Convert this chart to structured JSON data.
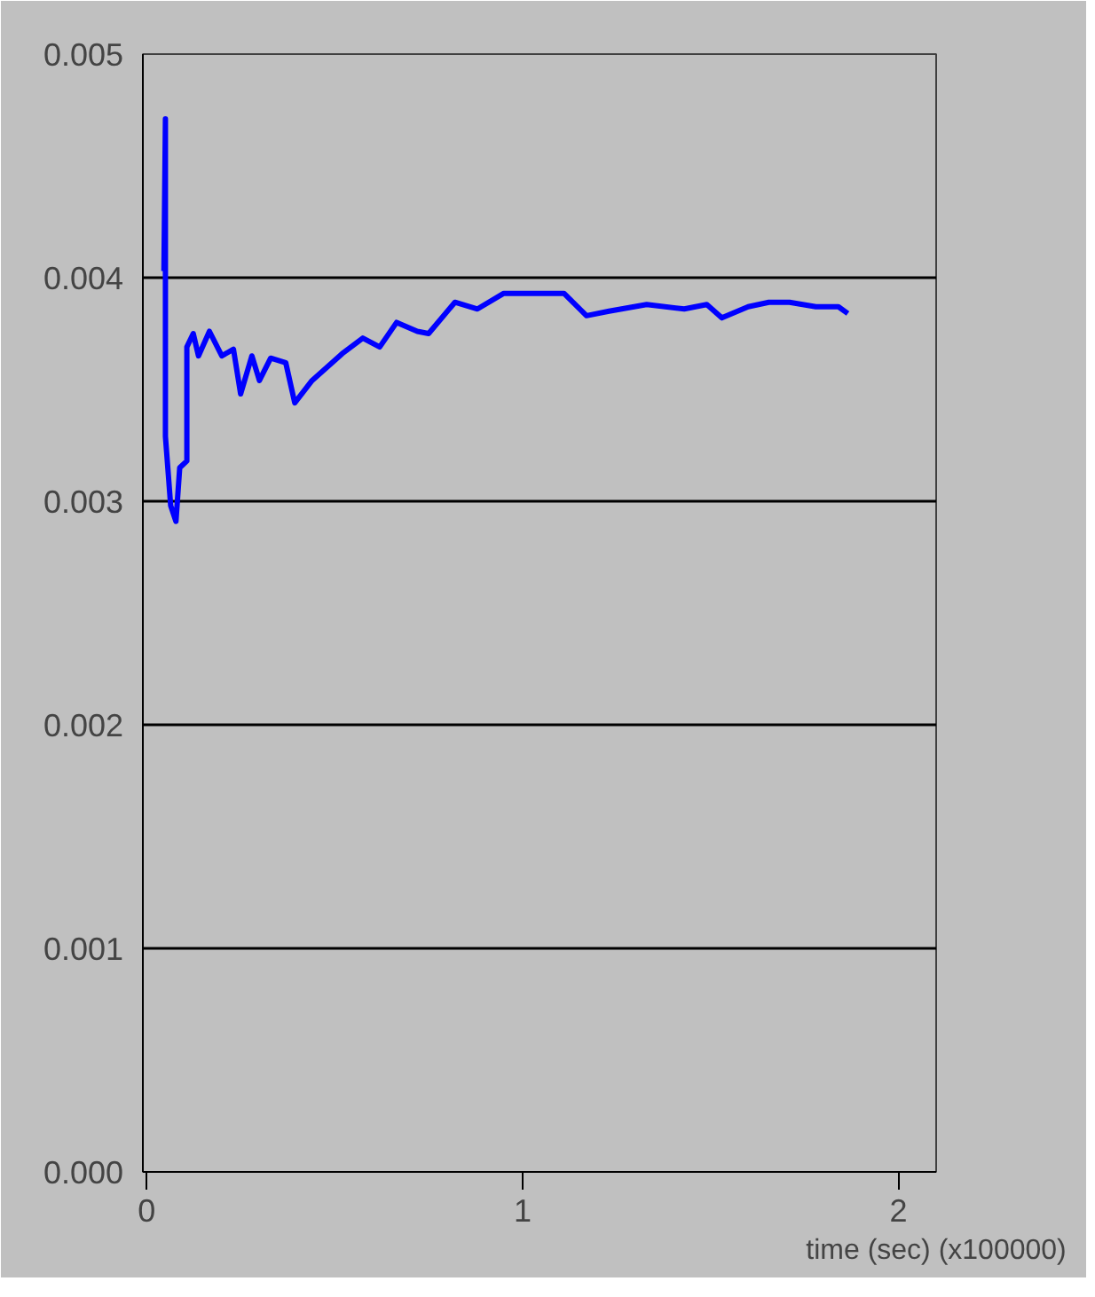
{
  "chart_data": {
    "type": "line",
    "xlabel": "time (sec) (x100000)",
    "x": [
      0.046,
      0.05,
      0.05,
      0.064,
      0.078,
      0.088,
      0.107,
      0.107,
      0.124,
      0.138,
      0.167,
      0.2,
      0.231,
      0.25,
      0.28,
      0.3,
      0.33,
      0.37,
      0.394,
      0.44,
      0.52,
      0.575,
      0.62,
      0.665,
      0.72,
      0.75,
      0.82,
      0.88,
      0.95,
      1.04,
      1.11,
      1.17,
      1.23,
      1.33,
      1.43,
      1.49,
      1.53,
      1.6,
      1.655,
      1.71,
      1.78,
      1.84,
      1.865
    ],
    "series": [
      {
        "color": "#0000ff",
        "values": [
          0.00403,
          0.00471,
          0.00329,
          0.00298,
          0.00291,
          0.00315,
          0.00318,
          0.00369,
          0.00375,
          0.00365,
          0.00376,
          0.00365,
          0.00368,
          0.00348,
          0.00365,
          0.00354,
          0.00364,
          0.00362,
          0.00344,
          0.00354,
          0.00366,
          0.00373,
          0.00369,
          0.0038,
          0.00376,
          0.00375,
          0.00389,
          0.00386,
          0.00393,
          0.00393,
          0.00393,
          0.00383,
          0.00385,
          0.00388,
          0.00386,
          0.00388,
          0.00382,
          0.00387,
          0.00389,
          0.00389,
          0.00387,
          0.00387,
          0.00384
        ]
      }
    ],
    "xlim": [
      -0.01,
      2.1
    ],
    "ylim": [
      0,
      0.005
    ],
    "xticks": [
      0,
      1,
      2
    ],
    "yticks": [
      {
        "value": 0,
        "label": "0.000"
      },
      {
        "value": 0.001,
        "label": "0.001"
      },
      {
        "value": 0.002,
        "label": "0.002"
      },
      {
        "value": 0.003,
        "label": "0.003"
      },
      {
        "value": 0.004,
        "label": "0.004"
      },
      {
        "value": 0.005,
        "label": "0.005"
      }
    ],
    "grid": "y",
    "marker": "none",
    "line_style": "solid"
  }
}
